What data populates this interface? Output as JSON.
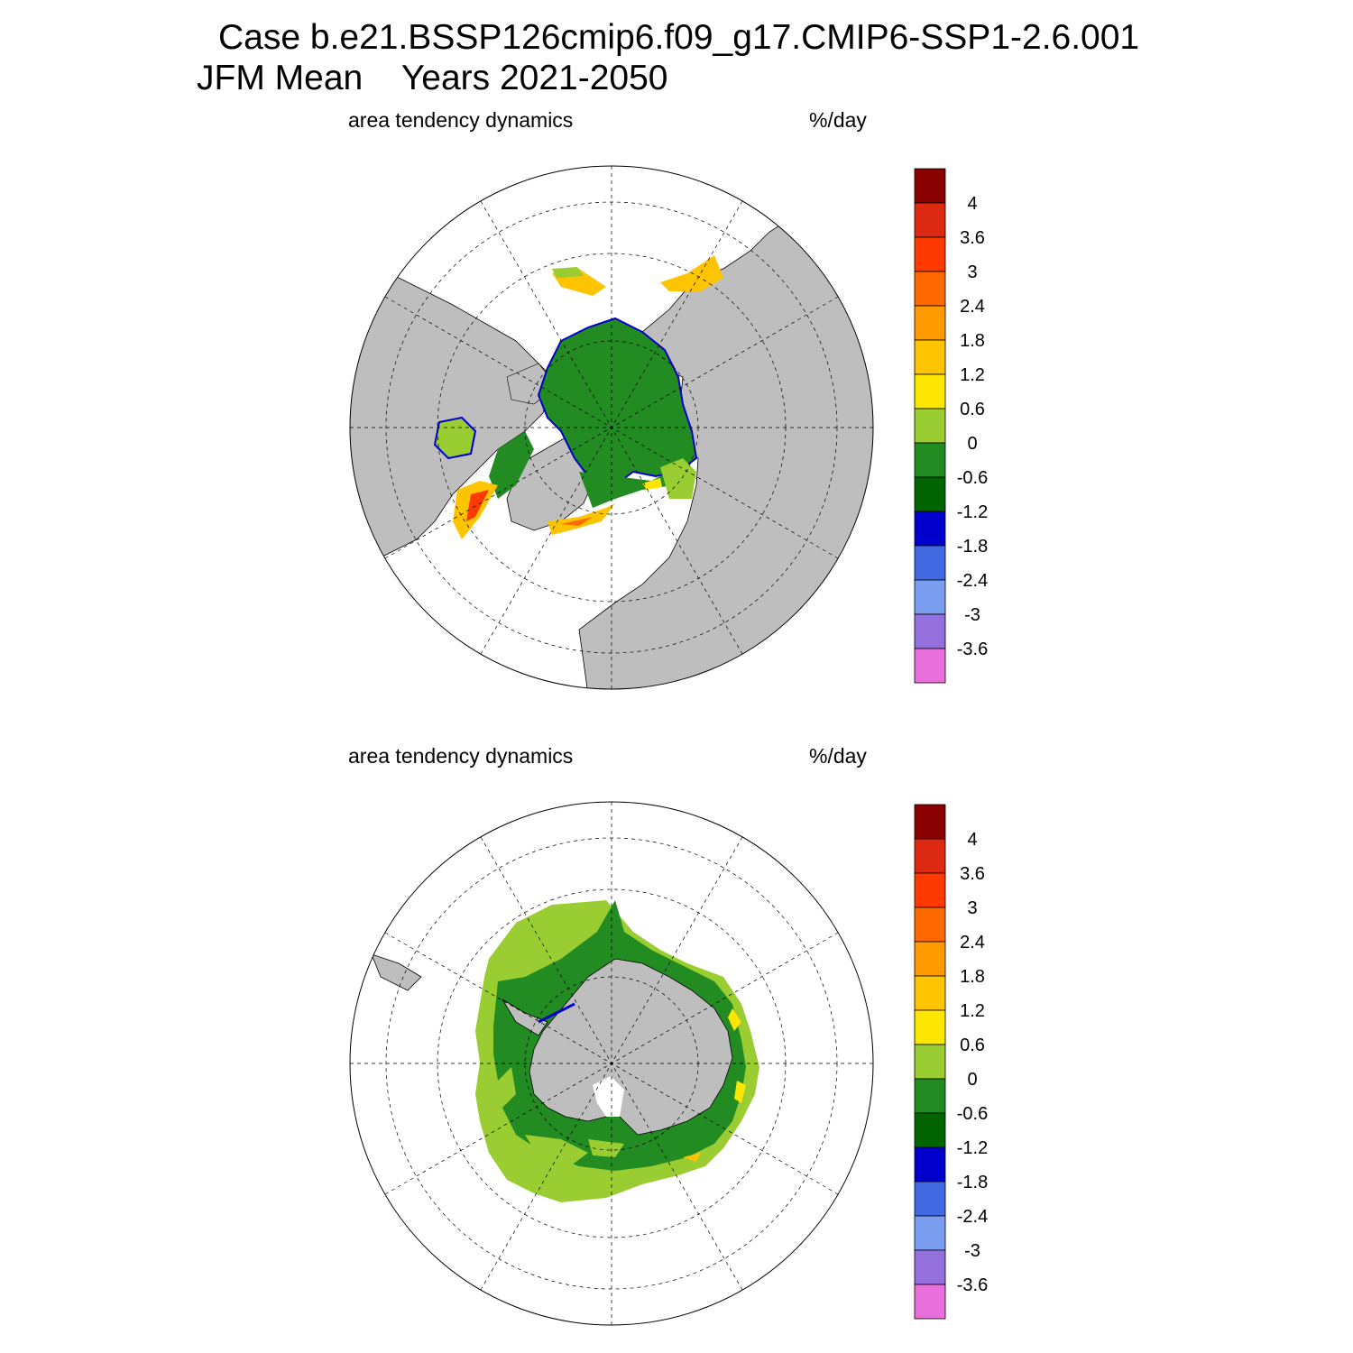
{
  "title": {
    "line1": "Case b.e21.BSSP126cmip6.f09_g17.CMIP6-SSP1-2.6.001",
    "line2": "JFM Mean    Years 2021-2050"
  },
  "panels": [
    {
      "left_label": "area tendency dynamics",
      "right_label": "%/day",
      "hemisphere": "north"
    },
    {
      "left_label": "area tendency dynamics",
      "right_label": "%/day",
      "hemisphere": "south"
    }
  ],
  "colorbar": {
    "labels": [
      "4",
      "3.6",
      "3",
      "2.4",
      "1.8",
      "1.2",
      "0.6",
      "0",
      "-0.6",
      "-1.2",
      "-1.8",
      "-2.4",
      "-3",
      "-3.6"
    ],
    "colors": [
      "#8b0000",
      "#dc2a12",
      "#ff3a00",
      "#ff6a00",
      "#ff9b00",
      "#ffc400",
      "#ffe600",
      "#9acd32",
      "#228b22",
      "#006400",
      "#0000cd",
      "#4169e1",
      "#7b9ef0",
      "#9370db",
      "#e86fdc"
    ]
  },
  "colors": {
    "land": "#bebebe",
    "ocean": "#ffffff"
  }
}
